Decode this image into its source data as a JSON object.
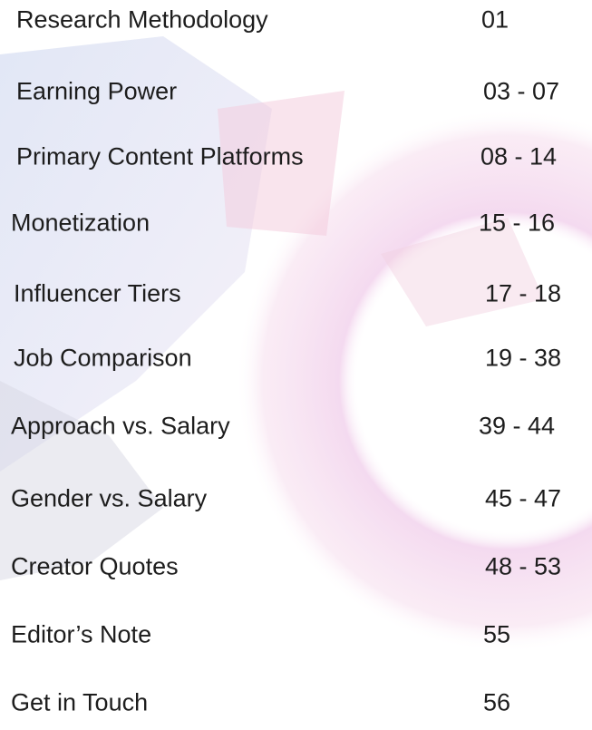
{
  "toc": {
    "items": [
      {
        "title": "Research Methodology",
        "pages": "01"
      },
      {
        "title": "Earning Power",
        "pages": "03 - 07"
      },
      {
        "title": "Primary Content Platforms",
        "pages": "08 - 14"
      },
      {
        "title": "Monetization",
        "pages": "15 - 16"
      },
      {
        "title": "Influencer Tiers",
        "pages": "17 - 18"
      },
      {
        "title": "Job Comparison",
        "pages": "19 - 38"
      },
      {
        "title": "Approach vs. Salary",
        "pages": "39 - 44"
      },
      {
        "title": "Gender vs. Salary",
        "pages": "45 - 47"
      },
      {
        "title": "Creator Quotes",
        "pages": "48 - 53"
      },
      {
        "title": "Editor’s Note",
        "pages": "55"
      },
      {
        "title": "Get in Touch",
        "pages": "56"
      }
    ]
  }
}
